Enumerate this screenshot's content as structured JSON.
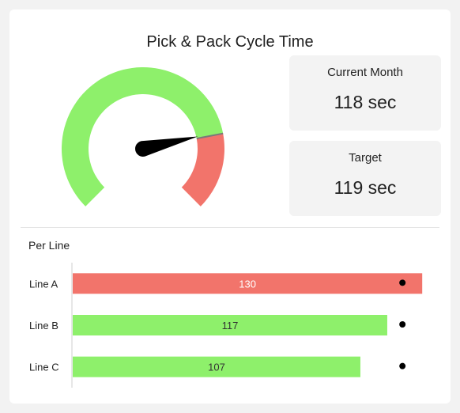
{
  "title": "Pick & Pack Cycle Time",
  "kpis": {
    "current": {
      "label": "Current Month",
      "value": "118 sec"
    },
    "target": {
      "label": "Target",
      "value": "119 sec"
    }
  },
  "colors": {
    "good": "#8ef06b",
    "bad": "#f2746b",
    "needle": "#000000"
  },
  "chart_data": [
    {
      "type": "gauge",
      "value": 118,
      "target": 119,
      "range": [
        0,
        150
      ],
      "bands": [
        {
          "from": 0,
          "to": 119,
          "color": "#8ef06b"
        },
        {
          "from": 119,
          "to": 150,
          "color": "#f2746b"
        }
      ]
    },
    {
      "type": "bar",
      "orientation": "horizontal",
      "title": "Per Line",
      "categories": [
        "Line A",
        "Line B",
        "Line C"
      ],
      "values": [
        130,
        117,
        107
      ],
      "targets": [
        120,
        120,
        120
      ],
      "value_labels": [
        "130",
        "117",
        "107"
      ],
      "bar_colors": [
        "#f2746b",
        "#8ef06b",
        "#8ef06b"
      ],
      "xlim": [
        0,
        137
      ]
    }
  ]
}
